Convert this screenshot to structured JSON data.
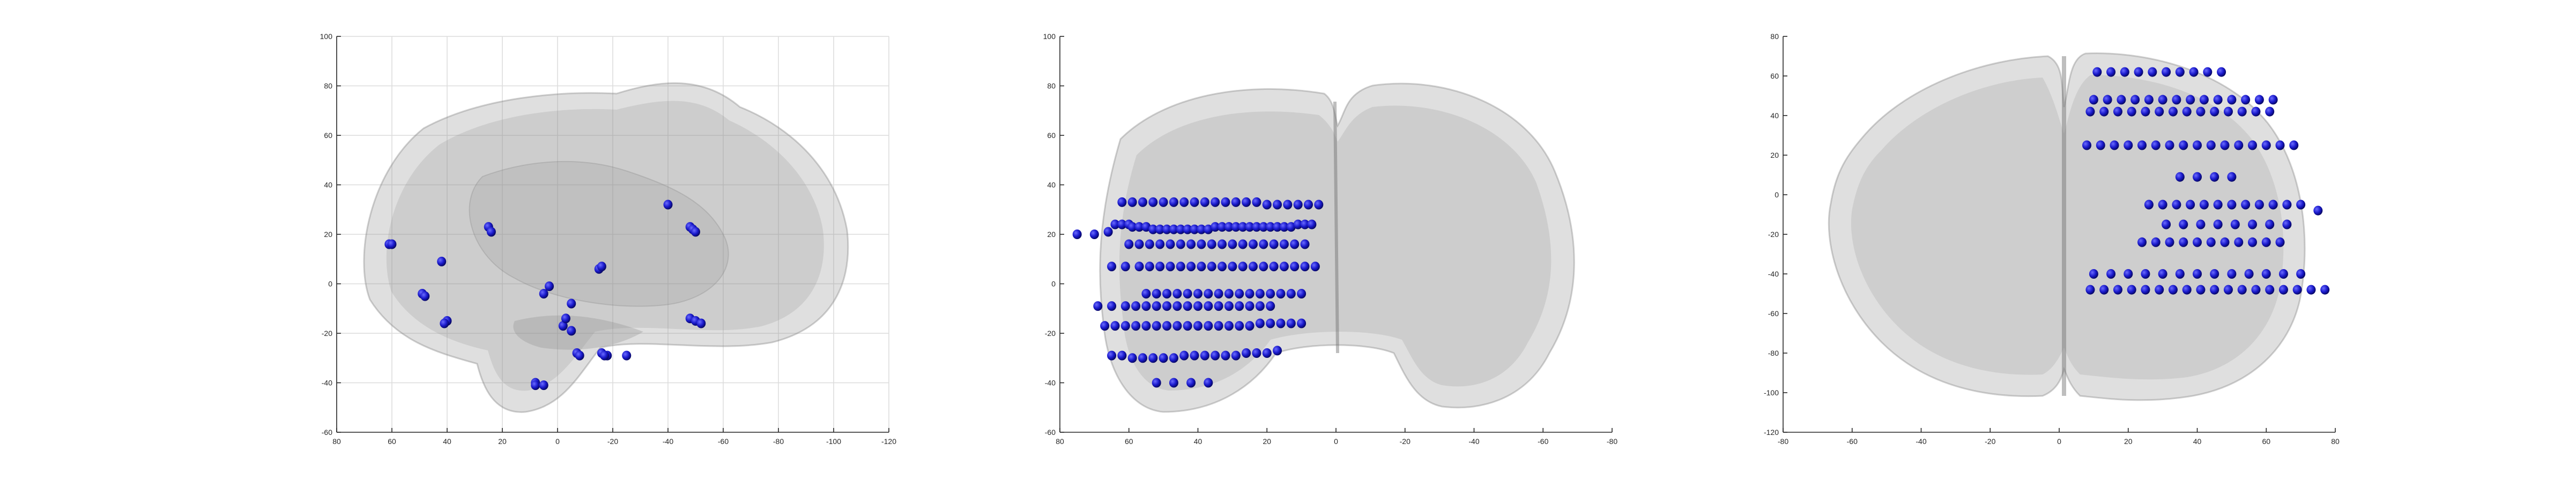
{
  "chart_data": [
    {
      "type": "scatter",
      "view": "sagittal",
      "title": "",
      "xlabel": "",
      "ylabel": "",
      "xlim": [
        80,
        -120
      ],
      "ylim": [
        -60,
        100
      ],
      "x_ticks": [
        80,
        60,
        40,
        20,
        0,
        -20,
        -40,
        -60,
        -80,
        -100,
        -120
      ],
      "y_ticks": [
        -60,
        -40,
        -20,
        0,
        20,
        40,
        60,
        80,
        100
      ],
      "x_tick_labels": [
        "80",
        "60",
        "40",
        "20",
        "0",
        "-20",
        "-40",
        "-60",
        "-80",
        "-100",
        "-120"
      ],
      "y_tick_labels": [
        "-60",
        "-40",
        "-20",
        "0",
        "20",
        "40",
        "60",
        "80",
        "100"
      ],
      "grid": true,
      "marker_color": "#1a1acc",
      "brain_color": "#8c8c8c",
      "series": [
        {
          "x": [
            61,
            60,
            42,
            49,
            48,
            40,
            41,
            25,
            24,
            3,
            5,
            -2,
            -5,
            -15,
            -16,
            -18,
            -25,
            -40,
            -48,
            -49,
            -50,
            -48,
            -7,
            -8,
            -16,
            -17,
            -50,
            -52,
            8,
            8,
            5,
            -3,
            -5
          ],
          "y": [
            16,
            16,
            9,
            -4,
            -5,
            -15,
            -16,
            23,
            21,
            -1,
            -4,
            -17,
            -19,
            6,
            7,
            -29,
            -29,
            32,
            23,
            22,
            21,
            -14,
            -28,
            -29,
            -28,
            -29,
            -15,
            -16,
            -40,
            -41,
            -41,
            -14,
            -8
          ]
        }
      ]
    },
    {
      "type": "scatter",
      "view": "coronal",
      "title": "",
      "xlabel": "",
      "ylabel": "",
      "xlim": [
        80,
        -80
      ],
      "ylim": [
        -60,
        100
      ],
      "x_ticks": [
        80,
        60,
        40,
        20,
        0,
        -20,
        -40,
        -60,
        -80
      ],
      "y_ticks": [
        -60,
        -40,
        -20,
        0,
        20,
        40,
        60,
        80,
        100
      ],
      "x_tick_labels": [
        "80",
        "60",
        "40",
        "20",
        "0",
        "-20",
        "-40",
        "-60",
        "-80"
      ],
      "y_tick_labels": [
        "-60",
        "-40",
        "-20",
        "0",
        "20",
        "40",
        "60",
        "80",
        "100"
      ],
      "grid": false,
      "marker_color": "#1a1acc",
      "brain_color": "#8c8c8c",
      "series": [
        {
          "x": [
            75,
            70,
            66,
            64,
            62,
            60,
            59,
            57,
            55,
            53,
            51,
            49,
            47,
            45,
            43,
            41,
            39,
            37,
            35,
            33,
            31,
            29,
            27,
            25,
            23,
            21,
            19,
            17,
            15,
            13,
            11,
            9,
            7,
            62,
            59,
            56,
            53,
            50,
            47,
            44,
            41,
            38,
            35,
            32,
            29,
            26,
            23,
            20,
            17,
            14,
            11,
            8,
            5,
            60,
            57,
            54,
            51,
            48,
            45,
            42,
            39,
            36,
            33,
            30,
            27,
            24,
            21,
            18,
            15,
            12,
            9,
            65,
            61,
            57,
            54,
            51,
            48,
            45,
            42,
            39,
            36,
            33,
            30,
            27,
            24,
            21,
            18,
            15,
            12,
            9,
            6,
            55,
            52,
            49,
            46,
            43,
            40,
            37,
            34,
            31,
            28,
            25,
            22,
            19,
            16,
            13,
            10,
            69,
            65,
            61,
            58,
            55,
            52,
            49,
            46,
            43,
            40,
            37,
            34,
            31,
            28,
            25,
            22,
            19,
            67,
            64,
            61,
            58,
            55,
            52,
            49,
            46,
            43,
            40,
            37,
            34,
            31,
            28,
            25,
            22,
            19,
            16,
            13,
            10,
            65,
            62,
            59,
            56,
            53,
            50,
            47,
            44,
            41,
            38,
            35,
            32,
            29,
            26,
            23,
            20,
            17,
            52,
            47,
            42,
            37
          ],
          "y": [
            20,
            20,
            21,
            24,
            24,
            24,
            23,
            23,
            23,
            22,
            22,
            22,
            22,
            22,
            22,
            22,
            22,
            22,
            23,
            23,
            23,
            23,
            23,
            23,
            23,
            23,
            23,
            23,
            23,
            23,
            24,
            24,
            24,
            33,
            33,
            33,
            33,
            33,
            33,
            33,
            33,
            33,
            33,
            33,
            33,
            33,
            33,
            32,
            32,
            32,
            32,
            32,
            32,
            16,
            16,
            16,
            16,
            16,
            16,
            16,
            16,
            16,
            16,
            16,
            16,
            16,
            16,
            16,
            16,
            16,
            16,
            7,
            7,
            7,
            7,
            7,
            7,
            7,
            7,
            7,
            7,
            7,
            7,
            7,
            7,
            7,
            7,
            7,
            7,
            7,
            7,
            -4,
            -4,
            -4,
            -4,
            -4,
            -4,
            -4,
            -4,
            -4,
            -4,
            -4,
            -4,
            -4,
            -4,
            -4,
            -4,
            -9,
            -9,
            -9,
            -9,
            -9,
            -9,
            -9,
            -9,
            -9,
            -9,
            -9,
            -9,
            -9,
            -9,
            -9,
            -9,
            -9,
            -17,
            -17,
            -17,
            -17,
            -17,
            -17,
            -17,
            -17,
            -17,
            -17,
            -17,
            -17,
            -17,
            -17,
            -17,
            -16,
            -16,
            -16,
            -16,
            -16,
            -29,
            -29,
            -30,
            -30,
            -30,
            -30,
            -30,
            -29,
            -29,
            -29,
            -29,
            -29,
            -29,
            -28,
            -28,
            -28,
            -27,
            -40,
            -40,
            -40,
            -40
          ]
        }
      ]
    },
    {
      "type": "scatter",
      "view": "axial",
      "title": "",
      "xlabel": "",
      "ylabel": "",
      "xlim": [
        -80,
        80
      ],
      "ylim": [
        -120,
        80
      ],
      "x_ticks": [
        -80,
        -60,
        -40,
        -20,
        0,
        20,
        40,
        60,
        80
      ],
      "y_ticks": [
        -120,
        -100,
        -80,
        -60,
        -40,
        -20,
        0,
        20,
        40,
        60,
        80
      ],
      "x_tick_labels": [
        "-80",
        "-60",
        "-40",
        "-20",
        "0",
        "20",
        "40",
        "60",
        "80"
      ],
      "y_tick_labels": [
        "-120",
        "-100",
        "-80",
        "-60",
        "-40",
        "-20",
        "0",
        "20",
        "40",
        "60",
        "80"
      ],
      "grid": false,
      "marker_color": "#1a1acc",
      "brain_color": "#8c8c8c",
      "series": [
        {
          "x": [
            11,
            15,
            19,
            23,
            27,
            31,
            35,
            39,
            43,
            47,
            10,
            14,
            18,
            22,
            26,
            30,
            34,
            38,
            42,
            46,
            50,
            54,
            58,
            62,
            9,
            13,
            17,
            21,
            25,
            29,
            33,
            37,
            41,
            45,
            49,
            53,
            57,
            61,
            8,
            12,
            16,
            20,
            24,
            28,
            32,
            36,
            40,
            44,
            48,
            52,
            56,
            60,
            64,
            68,
            35,
            40,
            45,
            50,
            26,
            30,
            34,
            38,
            42,
            46,
            50,
            54,
            58,
            62,
            66,
            70,
            75,
            31,
            36,
            41,
            46,
            51,
            56,
            61,
            66,
            24,
            28,
            32,
            36,
            40,
            44,
            48,
            52,
            56,
            60,
            64,
            10,
            15,
            20,
            25,
            30,
            35,
            40,
            45,
            50,
            55,
            60,
            65,
            70,
            9,
            13,
            17,
            21,
            25,
            29,
            33,
            37,
            41,
            45,
            49,
            53,
            57,
            61,
            65,
            69,
            73,
            77
          ],
          "y": [
            62,
            62,
            62,
            62,
            62,
            62,
            62,
            62,
            62,
            62,
            48,
            48,
            48,
            48,
            48,
            48,
            48,
            48,
            48,
            48,
            48,
            48,
            48,
            48,
            42,
            42,
            42,
            42,
            42,
            42,
            42,
            42,
            42,
            42,
            42,
            42,
            42,
            42,
            25,
            25,
            25,
            25,
            25,
            25,
            25,
            25,
            25,
            25,
            25,
            25,
            25,
            25,
            25,
            25,
            9,
            9,
            9,
            9,
            -5,
            -5,
            -5,
            -5,
            -5,
            -5,
            -5,
            -5,
            -5,
            -5,
            -5,
            -5,
            -8,
            -15,
            -15,
            -15,
            -15,
            -15,
            -15,
            -15,
            -15,
            -24,
            -24,
            -24,
            -24,
            -24,
            -24,
            -24,
            -24,
            -24,
            -24,
            -24,
            -40,
            -40,
            -40,
            -40,
            -40,
            -40,
            -40,
            -40,
            -40,
            -40,
            -40,
            -40,
            -40,
            -48,
            -48,
            -48,
            -48,
            -48,
            -48,
            -48,
            -48,
            -48,
            -48,
            -48,
            -48,
            -48,
            -48,
            -48,
            -48,
            -48,
            -48
          ]
        }
      ]
    }
  ]
}
